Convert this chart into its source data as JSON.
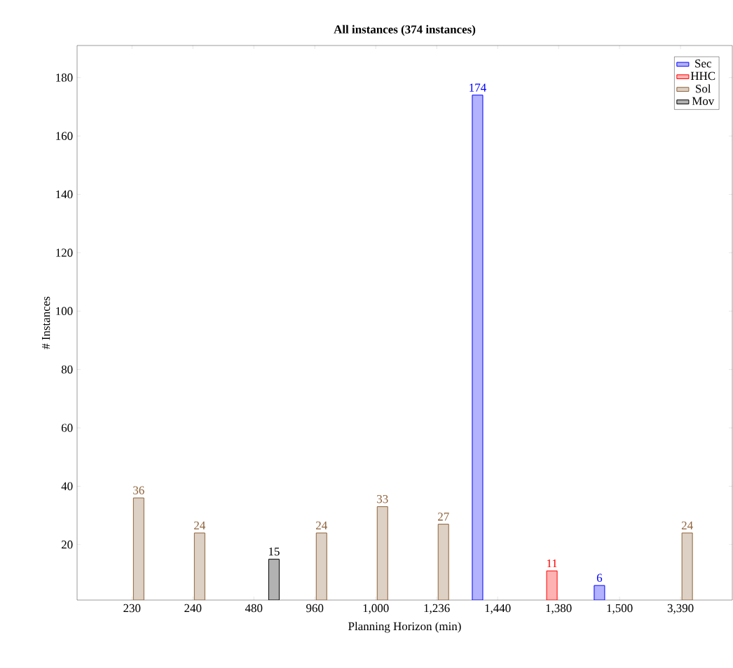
{
  "chart_data": {
    "type": "bar",
    "title": "**All instances (374 instances)**",
    "xlabel": "Planning Horizon (min)",
    "ylabel": "# Instances",
    "categories": [
      "230",
      "240",
      "480",
      "960",
      "1,000",
      "1,236",
      "1,440",
      "1,380",
      "1,500",
      "3,390"
    ],
    "series": [
      {
        "name": "Sec",
        "color": "#b2b2ff",
        "values": [
          null,
          null,
          null,
          null,
          null,
          null,
          174,
          null,
          6,
          null
        ],
        "value_labels": [
          null,
          null,
          null,
          null,
          null,
          null,
          "174",
          null,
          "6",
          null
        ]
      },
      {
        "name": "HHC",
        "color": "#ffb2b2",
        "values": [
          null,
          null,
          null,
          null,
          null,
          null,
          null,
          11,
          null,
          null
        ],
        "value_labels": [
          null,
          null,
          null,
          null,
          null,
          null,
          null,
          "11",
          null,
          null
        ]
      },
      {
        "name": "Sol",
        "color": "#ddd0c4",
        "values": [
          36,
          24,
          null,
          24,
          33,
          27,
          null,
          null,
          null,
          24
        ],
        "value_labels": [
          "36",
          "24",
          null,
          "24",
          "33",
          "27",
          null,
          null,
          null,
          "24"
        ]
      },
      {
        "name": "Mov",
        "color": "#b2b2b2",
        "values": [
          null,
          null,
          15,
          null,
          null,
          null,
          null,
          null,
          null,
          null
        ],
        "value_labels": [
          null,
          null,
          "15",
          null,
          null,
          null,
          null,
          null,
          null,
          null
        ]
      }
    ],
    "ylim": [
      1,
      191
    ],
    "yticks": [
      20,
      40,
      60,
      80,
      100,
      120,
      140,
      160,
      180
    ],
    "legend": "top right",
    "grid": false
  }
}
